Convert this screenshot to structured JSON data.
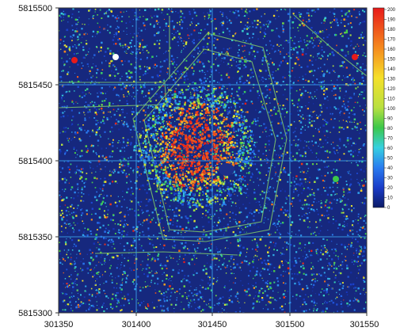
{
  "map": {
    "x_ticks": [
      "301350",
      "301400",
      "301450",
      "301500",
      "301550"
    ],
    "y_ticks": [
      "5815500",
      "5815450",
      "5815400",
      "5815350",
      "5815300"
    ],
    "x_range": [
      301350,
      301550
    ],
    "y_range": [
      5815300,
      5815500
    ],
    "grid": true,
    "gridline_color": "#3aa0e8"
  },
  "colorbar": {
    "labels": [
      "200",
      "190",
      "180",
      "170",
      "160",
      "150",
      "140",
      "130",
      "120",
      "110",
      "100",
      "90",
      "80",
      "70",
      "60",
      "50",
      "40",
      "30",
      "20",
      "10",
      "0"
    ],
    "stops": [
      {
        "v": 0,
        "c": "#0b1a66"
      },
      {
        "v": 20,
        "c": "#1a3cc8"
      },
      {
        "v": 40,
        "c": "#2a7cf0"
      },
      {
        "v": 60,
        "c": "#36d0e0"
      },
      {
        "v": 80,
        "c": "#3cc84a"
      },
      {
        "v": 100,
        "c": "#b8e040"
      },
      {
        "v": 130,
        "c": "#f5e02a"
      },
      {
        "v": 160,
        "c": "#f58a1e"
      },
      {
        "v": 200,
        "c": "#e81a1a"
      }
    ]
  }
}
